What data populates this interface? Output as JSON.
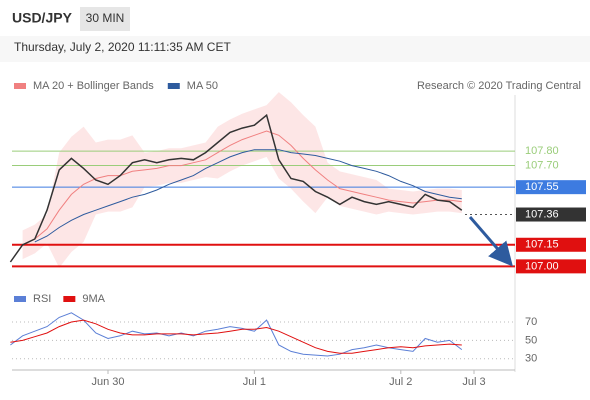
{
  "header": {
    "symbol": "USD/JPY",
    "interval": "30 MIN",
    "timestamp": "Thursday, July 2, 2020 11:11:35 AM CET"
  },
  "chart_data": [
    {
      "type": "line",
      "credit": "Research © 2020 Trading Central",
      "categories": [
        null,
        null,
        null,
        null,
        null,
        null,
        null,
        null,
        "Jun 30",
        null,
        null,
        null,
        null,
        null,
        null,
        null,
        null,
        null,
        null,
        null,
        "Jul 1",
        null,
        null,
        null,
        null,
        null,
        null,
        null,
        null,
        null,
        null,
        null,
        "Jul 2",
        null,
        null,
        null,
        null,
        null,
        "Jul 3",
        null,
        null,
        null
      ],
      "ylim": [
        106.94,
        108.19
      ],
      "price": {
        "color": "#333333",
        "values": [
          107.03,
          107.15,
          107.19,
          107.39,
          107.67,
          107.75,
          107.68,
          107.6,
          107.57,
          107.63,
          107.72,
          107.74,
          107.72,
          107.74,
          107.75,
          107.74,
          107.79,
          107.86,
          107.93,
          107.96,
          107.98,
          108.05,
          107.74,
          107.61,
          107.59,
          107.52,
          107.48,
          107.43,
          107.48,
          107.45,
          107.43,
          107.45,
          107.43,
          107.41,
          107.5,
          107.46,
          107.45,
          107.39,
          null,
          null,
          null,
          null
        ]
      },
      "series": [
        {
          "name": "MA 20 + Bollinger Bands",
          "color": "#f08080",
          "band_color": "#fde0e0",
          "values": [
            null,
            107.15,
            107.19,
            107.26,
            107.39,
            107.5,
            107.57,
            107.61,
            107.63,
            107.63,
            107.66,
            107.67,
            107.68,
            107.7,
            107.7,
            107.72,
            107.74,
            107.79,
            107.84,
            107.88,
            107.91,
            107.94,
            107.91,
            107.84,
            107.75,
            107.67,
            107.6,
            107.54,
            107.52,
            107.5,
            107.48,
            107.46,
            107.45,
            107.44,
            107.45,
            107.46,
            107.46,
            107.45,
            null,
            null,
            null,
            null
          ],
          "upper": [
            null,
            107.25,
            107.29,
            107.36,
            107.79,
            107.9,
            107.97,
            107.86,
            107.88,
            107.88,
            107.91,
            107.79,
            107.8,
            107.82,
            107.82,
            107.84,
            107.86,
            107.97,
            108.02,
            108.06,
            108.09,
            108.12,
            108.21,
            108.14,
            108.05,
            107.97,
            107.72,
            107.66,
            107.64,
            107.62,
            107.6,
            107.54,
            107.53,
            107.52,
            107.53,
            107.54,
            107.54,
            107.53,
            null,
            null,
            null,
            null
          ],
          "lower": [
            null,
            107.05,
            107.09,
            107.16,
            106.99,
            107.1,
            107.17,
            107.36,
            107.38,
            107.38,
            107.41,
            107.55,
            107.56,
            107.58,
            107.58,
            107.6,
            107.62,
            107.61,
            107.66,
            107.7,
            107.73,
            107.76,
            107.61,
            107.54,
            107.45,
            107.37,
            107.48,
            107.42,
            107.4,
            107.38,
            107.36,
            107.38,
            107.37,
            107.36,
            107.37,
            107.38,
            107.38,
            107.37,
            null,
            null,
            null,
            null
          ]
        },
        {
          "name": "MA 50",
          "color": "#2e5b9e",
          "values": [
            null,
            null,
            107.17,
            107.21,
            107.27,
            107.32,
            107.36,
            107.39,
            107.42,
            107.45,
            107.48,
            107.5,
            107.53,
            107.57,
            107.6,
            107.63,
            107.68,
            107.72,
            107.76,
            107.79,
            107.81,
            107.81,
            107.81,
            107.79,
            107.78,
            107.77,
            107.75,
            107.73,
            107.7,
            107.68,
            107.66,
            107.63,
            107.59,
            107.56,
            107.52,
            107.5,
            107.48,
            107.47,
            null,
            null,
            null,
            null
          ]
        }
      ],
      "levels": [
        {
          "value": 107.8,
          "label": "107.80",
          "color": "#9acd7a",
          "style": "text",
          "line": "solid"
        },
        {
          "value": 107.7,
          "label": "107.70",
          "color": "#9acd7a",
          "style": "text",
          "line": "solid"
        },
        {
          "value": 107.55,
          "label": "107.55",
          "color": "#3d7be0",
          "style": "box",
          "line": "solid"
        },
        {
          "value": 107.36,
          "label": "107.36",
          "color": "#333333",
          "style": "box",
          "line": "dotted"
        },
        {
          "value": 107.15,
          "label": "107.15",
          "color": "#e01010",
          "style": "box",
          "line": "solid"
        },
        {
          "value": 107.0,
          "label": "107.00",
          "color": "#e01010",
          "style": "box",
          "line": "solid"
        }
      ]
    },
    {
      "type": "line",
      "ylim": [
        20,
        83
      ],
      "yticks": [
        30,
        50,
        70
      ],
      "grid": true,
      "series": [
        {
          "name": "RSI",
          "color": "#5b7fd6",
          "values": [
            45,
            55,
            60,
            65,
            75,
            80,
            72,
            58,
            52,
            55,
            60,
            57,
            58,
            55,
            58,
            55,
            60,
            62,
            65,
            63,
            60,
            72,
            45,
            38,
            35,
            34,
            33,
            35,
            40,
            42,
            45,
            42,
            40,
            38,
            52,
            48,
            50,
            40,
            null,
            null,
            null,
            null
          ]
        },
        {
          "name": "9MA",
          "color": "#e01010",
          "values": [
            48,
            50,
            54,
            58,
            65,
            70,
            72,
            68,
            62,
            58,
            56,
            56,
            57,
            57,
            57,
            56,
            57,
            58,
            60,
            62,
            62,
            64,
            60,
            54,
            48,
            42,
            38,
            36,
            36,
            38,
            40,
            42,
            43,
            42,
            44,
            45,
            46,
            45,
            null,
            null,
            null,
            null
          ]
        }
      ]
    }
  ]
}
